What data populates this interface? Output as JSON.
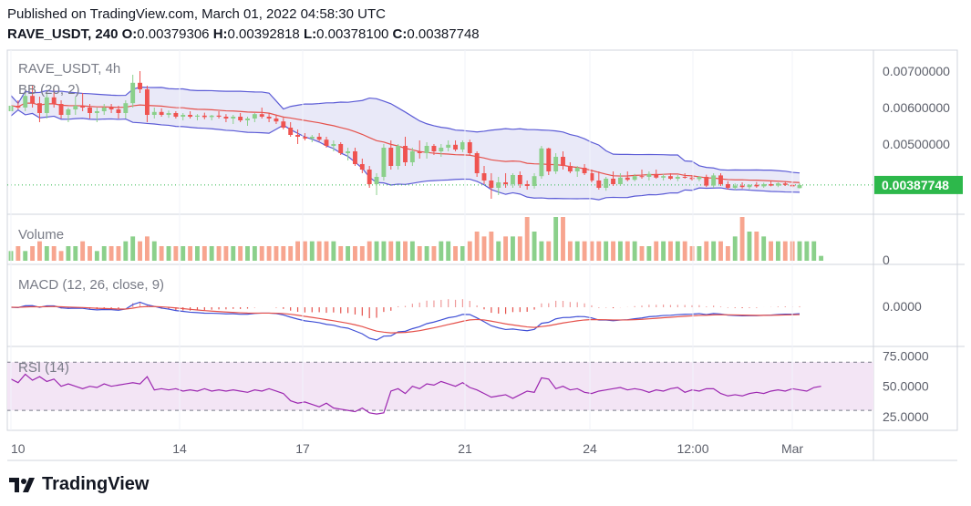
{
  "header": {
    "published": "Published on TradingView.com, March 01, 2022 04:58:30 UTC",
    "symbol": "RAVE_USDT, 240",
    "o_label": "O:",
    "o_value": "0.00379306",
    "h_label": "H:",
    "h_value": "0.00392818",
    "l_label": "L:",
    "l_value": "0.00378100",
    "c_label": "C:",
    "c_value": "0.00387748"
  },
  "brand": {
    "name": "TradingView",
    "icon": "tradingview-logo-icon"
  },
  "colors": {
    "up": "#26a69a",
    "up_light": "#8bd08b",
    "down": "#ef5350",
    "down_light": "#f7a58f",
    "bb_band": "#5b5bd6",
    "bb_fill": "#e1e2f5",
    "bb_basis": "#e5514b",
    "macd_line": "#3f4fd6",
    "signal_line": "#e5514b",
    "rsi_line": "#9c27b0",
    "rsi_fill": "#f3e5f5",
    "price_tag": "#2db84b"
  },
  "chart_data": {
    "type": "candlestick",
    "symbol_label": "RAVE_USDT, 4h",
    "x_ticks": [
      "10",
      "14",
      "17",
      "21",
      "24",
      "12:00",
      "Mar"
    ],
    "price_axis": {
      "ticks": [
        "0.00700000",
        "0.00600000",
        "0.00500000"
      ],
      "ylim": [
        0.0032,
        0.0074
      ],
      "last_price": "0.00387748"
    },
    "candles": [
      [
        0.0059,
        0.0061,
        0.0058,
        0.00605
      ],
      [
        0.00605,
        0.0062,
        0.00595,
        0.006
      ],
      [
        0.006,
        0.0064,
        0.0059,
        0.00632
      ],
      [
        0.00632,
        0.0066,
        0.006,
        0.00612
      ],
      [
        0.00612,
        0.0063,
        0.0056,
        0.00585
      ],
      [
        0.00585,
        0.0064,
        0.0057,
        0.00628
      ],
      [
        0.00628,
        0.0065,
        0.006,
        0.0061
      ],
      [
        0.0061,
        0.0062,
        0.0057,
        0.0058
      ],
      [
        0.0058,
        0.006,
        0.0056,
        0.00595
      ],
      [
        0.00595,
        0.0063,
        0.0058,
        0.00605
      ],
      [
        0.00605,
        0.0064,
        0.0059,
        0.006
      ],
      [
        0.006,
        0.0061,
        0.0057,
        0.00585
      ],
      [
        0.00585,
        0.006,
        0.0056,
        0.0059
      ],
      [
        0.0059,
        0.0061,
        0.0058,
        0.006
      ],
      [
        0.006,
        0.0061,
        0.00585,
        0.00595
      ],
      [
        0.00595,
        0.00605,
        0.0057,
        0.00585
      ],
      [
        0.00585,
        0.0062,
        0.0057,
        0.00612
      ],
      [
        0.00612,
        0.0069,
        0.006,
        0.00668
      ],
      [
        0.00668,
        0.007,
        0.0064,
        0.0065
      ],
      [
        0.0065,
        0.0066,
        0.0056,
        0.0058
      ],
      [
        0.0058,
        0.006,
        0.0057,
        0.00588
      ],
      [
        0.00588,
        0.00598,
        0.00575,
        0.0058
      ],
      [
        0.0058,
        0.00592,
        0.00572,
        0.00585
      ],
      [
        0.00585,
        0.0059,
        0.0057,
        0.00575
      ],
      [
        0.00575,
        0.00585,
        0.00565,
        0.0058
      ],
      [
        0.0058,
        0.0059,
        0.0057,
        0.00575
      ],
      [
        0.00575,
        0.00582,
        0.00565,
        0.00578
      ],
      [
        0.00578,
        0.00586,
        0.00568,
        0.00574
      ],
      [
        0.00574,
        0.0058,
        0.00565,
        0.00578
      ],
      [
        0.00578,
        0.0059,
        0.0057,
        0.00575
      ],
      [
        0.00575,
        0.00582,
        0.0056,
        0.0057
      ],
      [
        0.0057,
        0.0058,
        0.00555,
        0.00575
      ],
      [
        0.00575,
        0.00585,
        0.0056,
        0.00565
      ],
      [
        0.00565,
        0.00575,
        0.0055,
        0.0057
      ],
      [
        0.0057,
        0.00585,
        0.0056,
        0.00582
      ],
      [
        0.00582,
        0.006,
        0.0057,
        0.00575
      ],
      [
        0.00575,
        0.00585,
        0.0056,
        0.0057
      ],
      [
        0.0057,
        0.0058,
        0.00555,
        0.00562
      ],
      [
        0.00562,
        0.00572,
        0.0054,
        0.00545
      ],
      [
        0.00545,
        0.0056,
        0.0052,
        0.00525
      ],
      [
        0.00525,
        0.0054,
        0.005,
        0.0052
      ],
      [
        0.0052,
        0.0053,
        0.0051,
        0.00515
      ],
      [
        0.00515,
        0.00525,
        0.00505,
        0.0052
      ],
      [
        0.0052,
        0.0053,
        0.00508,
        0.00512
      ],
      [
        0.00512,
        0.0052,
        0.0049,
        0.00495
      ],
      [
        0.00495,
        0.0051,
        0.0048,
        0.005
      ],
      [
        0.005,
        0.00505,
        0.0047,
        0.00475
      ],
      [
        0.00475,
        0.0049,
        0.00455,
        0.0048
      ],
      [
        0.0048,
        0.0049,
        0.0044,
        0.00445
      ],
      [
        0.00445,
        0.0046,
        0.0042,
        0.0043
      ],
      [
        0.0043,
        0.0044,
        0.0038,
        0.0039
      ],
      [
        0.0039,
        0.0042,
        0.0036,
        0.0041
      ],
      [
        0.0041,
        0.005,
        0.004,
        0.0049
      ],
      [
        0.0049,
        0.0051,
        0.0043,
        0.0044
      ],
      [
        0.0044,
        0.005,
        0.0043,
        0.00495
      ],
      [
        0.00495,
        0.0052,
        0.0044,
        0.0045
      ],
      [
        0.0045,
        0.0049,
        0.0044,
        0.0048
      ],
      [
        0.0048,
        0.0051,
        0.0046,
        0.00475
      ],
      [
        0.00475,
        0.00505,
        0.0046,
        0.00495
      ],
      [
        0.00495,
        0.005,
        0.0047,
        0.0048
      ],
      [
        0.0048,
        0.005,
        0.00465,
        0.0049
      ],
      [
        0.0049,
        0.0051,
        0.0048,
        0.00498
      ],
      [
        0.00498,
        0.0051,
        0.0048,
        0.00485
      ],
      [
        0.00485,
        0.0051,
        0.00478,
        0.00505
      ],
      [
        0.00505,
        0.00512,
        0.0047,
        0.00475
      ],
      [
        0.00475,
        0.0048,
        0.0041,
        0.0042
      ],
      [
        0.0042,
        0.0044,
        0.0039,
        0.004
      ],
      [
        0.004,
        0.0042,
        0.0035,
        0.0038
      ],
      [
        0.0038,
        0.0041,
        0.0036,
        0.00395
      ],
      [
        0.00395,
        0.0042,
        0.0038,
        0.0039
      ],
      [
        0.0039,
        0.0042,
        0.0038,
        0.00415
      ],
      [
        0.00415,
        0.00425,
        0.0038,
        0.0039
      ],
      [
        0.0039,
        0.004,
        0.00375,
        0.00385
      ],
      [
        0.00385,
        0.0042,
        0.00378,
        0.00412
      ],
      [
        0.00412,
        0.00495,
        0.00405,
        0.00488
      ],
      [
        0.00488,
        0.0049,
        0.00415,
        0.00425
      ],
      [
        0.00425,
        0.00475,
        0.00418,
        0.00465
      ],
      [
        0.00465,
        0.0048,
        0.0043,
        0.0044
      ],
      [
        0.0044,
        0.0045,
        0.0042,
        0.00425
      ],
      [
        0.00425,
        0.0044,
        0.0041,
        0.00435
      ],
      [
        0.00435,
        0.00445,
        0.00415,
        0.0042
      ],
      [
        0.0042,
        0.0043,
        0.00395,
        0.004
      ],
      [
        0.004,
        0.00425,
        0.00375,
        0.0038
      ],
      [
        0.0038,
        0.0041,
        0.00372,
        0.00405
      ],
      [
        0.00405,
        0.00425,
        0.00385,
        0.0039
      ],
      [
        0.0039,
        0.0042,
        0.00385,
        0.00408
      ],
      [
        0.00408,
        0.00425,
        0.00398,
        0.00402
      ],
      [
        0.00402,
        0.00418,
        0.00398,
        0.00412
      ],
      [
        0.00412,
        0.0043,
        0.00405,
        0.0041
      ],
      [
        0.0041,
        0.00425,
        0.004,
        0.00418
      ],
      [
        0.00418,
        0.0043,
        0.00405,
        0.00408
      ],
      [
        0.00408,
        0.00418,
        0.004,
        0.00412
      ],
      [
        0.00412,
        0.0042,
        0.00402,
        0.00405
      ],
      [
        0.00405,
        0.00415,
        0.00398,
        0.0041
      ],
      [
        0.0041,
        0.0042,
        0.00405,
        0.00408
      ],
      [
        0.00408,
        0.00415,
        0.004,
        0.00404
      ],
      [
        0.00404,
        0.00412,
        0.00398,
        0.0041
      ],
      [
        0.0041,
        0.00416,
        0.00382,
        0.00386
      ],
      [
        0.00386,
        0.0042,
        0.0038,
        0.00414
      ],
      [
        0.00414,
        0.0042,
        0.00385,
        0.0039
      ],
      [
        0.0039,
        0.00398,
        0.00375,
        0.0038
      ],
      [
        0.0038,
        0.00392,
        0.00374,
        0.00386
      ],
      [
        0.00386,
        0.00395,
        0.00378,
        0.00382
      ],
      [
        0.00382,
        0.0039,
        0.00376,
        0.00388
      ],
      [
        0.00388,
        0.00396,
        0.0038,
        0.00384
      ],
      [
        0.00384,
        0.00394,
        0.0038,
        0.0039
      ],
      [
        0.0039,
        0.00398,
        0.00384,
        0.00386
      ],
      [
        0.00386,
        0.00395,
        0.00382,
        0.00392
      ],
      [
        0.00392,
        0.00398,
        0.00385,
        0.00388
      ],
      [
        0.00388,
        0.00395,
        0.0038,
        0.00384
      ],
      [
        0.00379306,
        0.00392818,
        0.003781,
        0.00387748
      ]
    ],
    "volume_pane": {
      "label": "Volume",
      "axis_tick": "0",
      "values": [
        2,
        3,
        2,
        3,
        4,
        3,
        3,
        2,
        3,
        3,
        4,
        3,
        2,
        3,
        3,
        3,
        4,
        5,
        4,
        5,
        4,
        3,
        3,
        3,
        3,
        3,
        3,
        3,
        3,
        3,
        3,
        3,
        3,
        3,
        3,
        3,
        3,
        3,
        3,
        3,
        4,
        4,
        4,
        4,
        4,
        4,
        3,
        3,
        3,
        3,
        4,
        4,
        4,
        4,
        4,
        4,
        4,
        3,
        3,
        3,
        4,
        4,
        3,
        3,
        4,
        6,
        5,
        6,
        4,
        5,
        5,
        5,
        9,
        6,
        4,
        4,
        9,
        9,
        4,
        4,
        4,
        4,
        4,
        4,
        4,
        4,
        4,
        4,
        3,
        3,
        4,
        4,
        4,
        4,
        4,
        3,
        3,
        4,
        4,
        4,
        3,
        5,
        9,
        6,
        6,
        5,
        4,
        4,
        4,
        4,
        4,
        4,
        4,
        1
      ]
    },
    "macd_pane": {
      "label": "MACD (12, 26, close, 9)",
      "axis_tick": "0.0000"
    },
    "rsi_pane": {
      "label": "RSI (14)",
      "ticks": [
        "75.0000",
        "50.0000",
        "25.0000"
      ],
      "ylim": [
        15,
        80
      ],
      "values": [
        56,
        53,
        60,
        55,
        58,
        54,
        56,
        50,
        52,
        50,
        48,
        50,
        49,
        52,
        50,
        51,
        52,
        53,
        52,
        58,
        47,
        48,
        47,
        48,
        46,
        47,
        46,
        48,
        46,
        47,
        46,
        47,
        46,
        45,
        47,
        46,
        48,
        46,
        44,
        38,
        36,
        37,
        35,
        33,
        36,
        32,
        31,
        30,
        29,
        32,
        28,
        27,
        28,
        46,
        48,
        44,
        50,
        48,
        52,
        51,
        54,
        52,
        50,
        53,
        49,
        47,
        44,
        41,
        42,
        43,
        40,
        43,
        46,
        45,
        57,
        56,
        48,
        50,
        47,
        48,
        45,
        44,
        46,
        47,
        48,
        49,
        47,
        48,
        47,
        45,
        47,
        46,
        48,
        49,
        45,
        47,
        46,
        48,
        48,
        44,
        42,
        43,
        42,
        44,
        45,
        44,
        46,
        47,
        46,
        48,
        47,
        46,
        49,
        50
      ]
    }
  }
}
